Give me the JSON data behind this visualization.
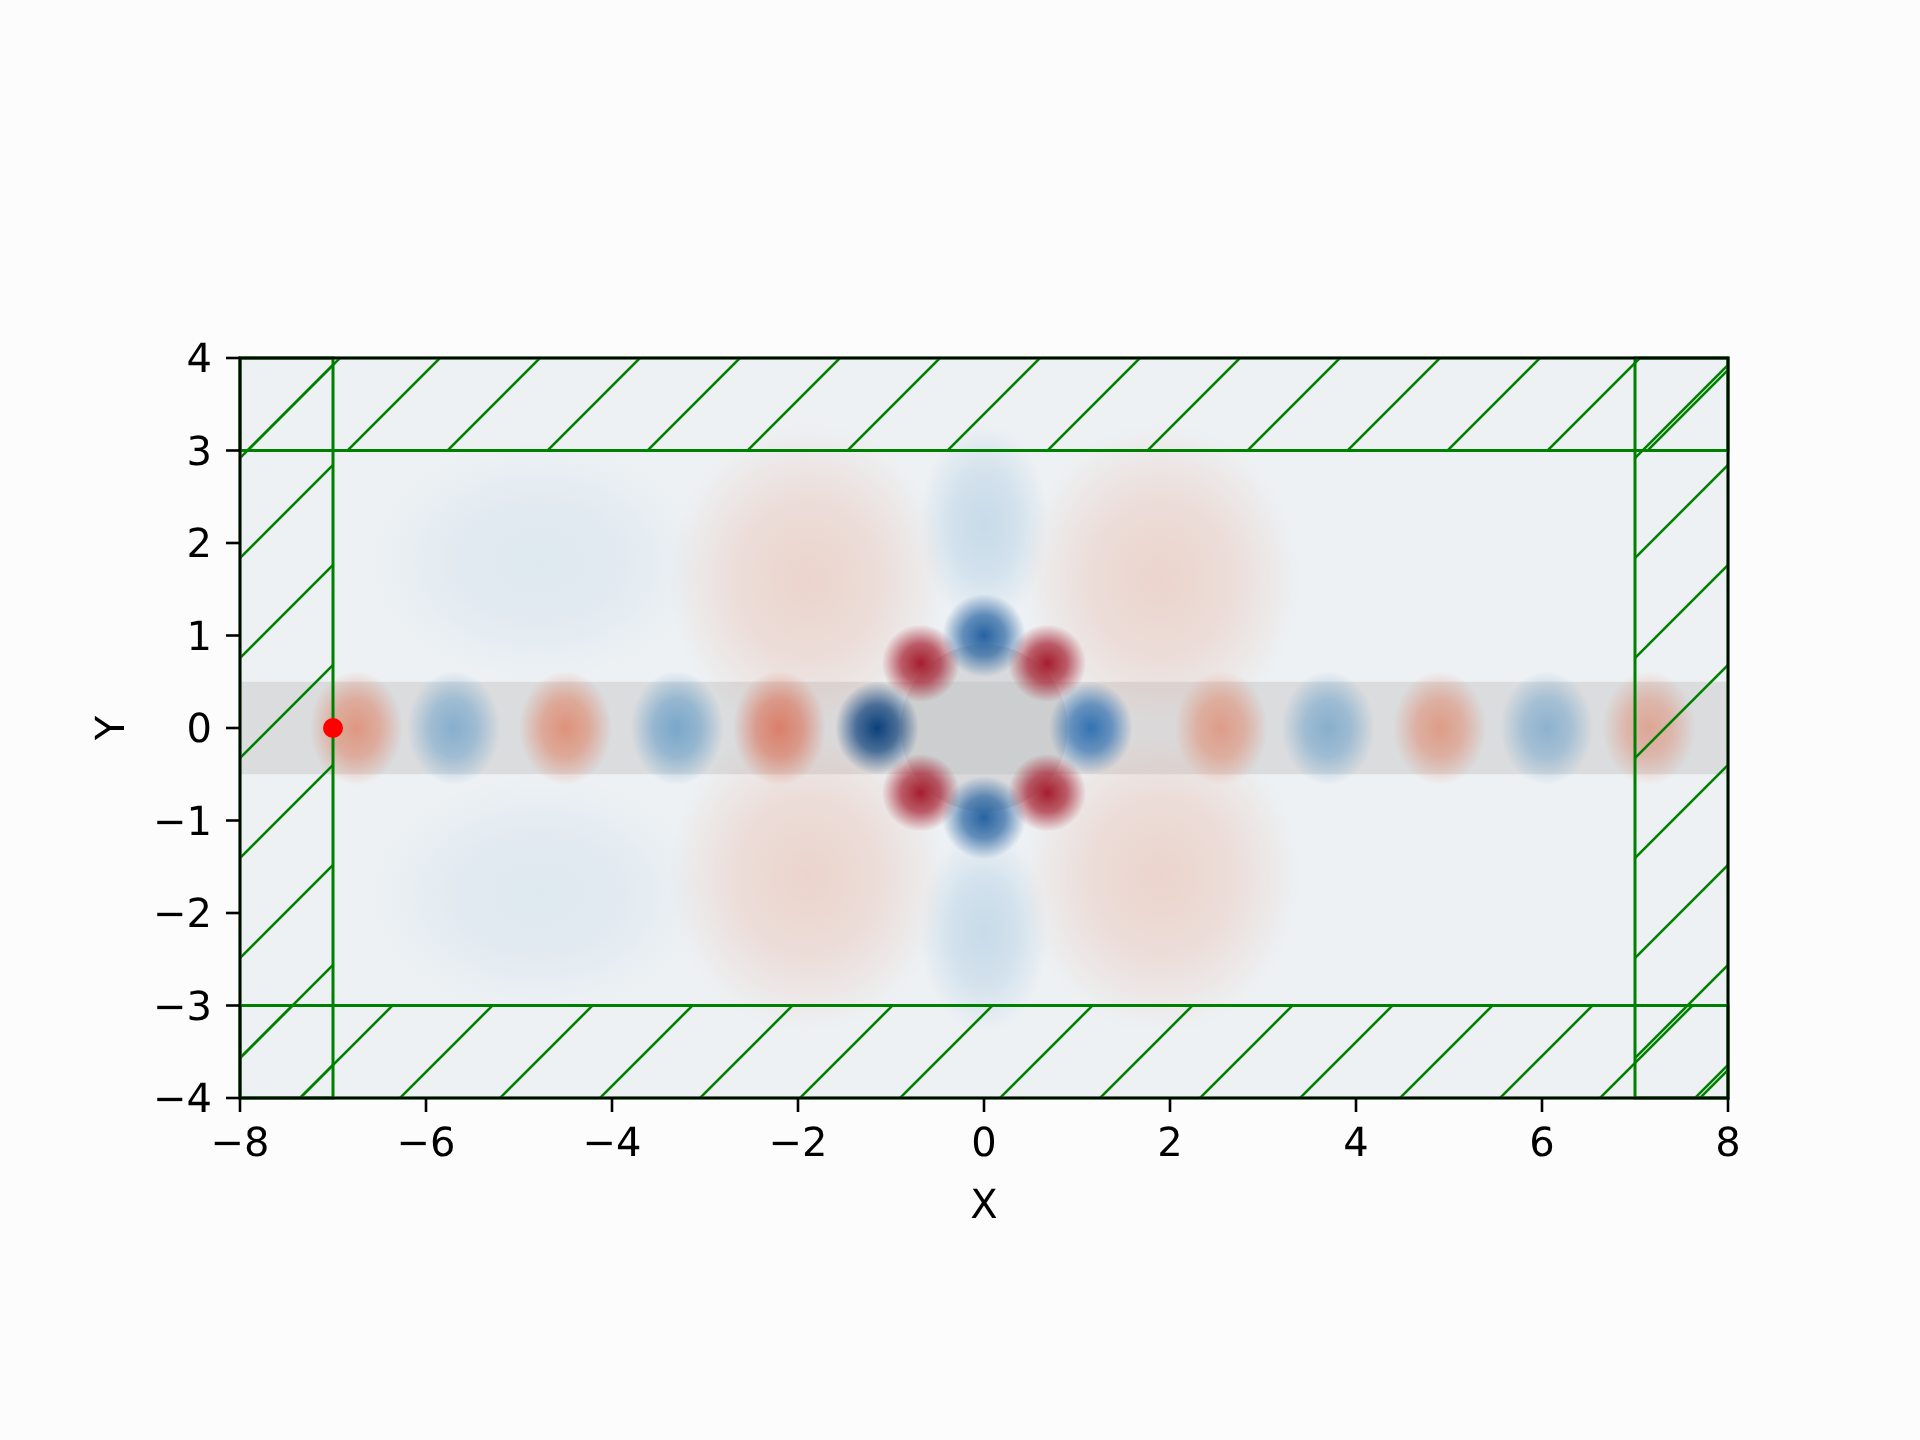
{
  "chart_data": {
    "type": "scatter",
    "xlabel": "X",
    "ylabel": "Y",
    "x": [
      -7
    ],
    "series": [
      {
        "color": "#ff0000",
        "values": [
          0
        ]
      }
    ],
    "marker": "circle",
    "xlim": [
      -8,
      8
    ],
    "ylim": [
      -4,
      4
    ],
    "xticks": [
      -8,
      -6,
      -4,
      -2,
      0,
      2,
      4,
      6,
      8
    ],
    "yticks": [
      -4,
      -3,
      -2,
      -1,
      0,
      1,
      2,
      3,
      4
    ],
    "bands": [
      {
        "axis": "x",
        "from": -8,
        "to": -7,
        "color": "#008000"
      },
      {
        "axis": "x",
        "from": 7,
        "to": 8,
        "color": "#008000"
      },
      {
        "axis": "y",
        "from": 3,
        "to": 4,
        "color": "#008000"
      },
      {
        "axis": "y",
        "from": -4,
        "to": -3,
        "color": "#008000"
      },
      {
        "axis": "y",
        "from": -0.5,
        "to": 0.5,
        "color": "#bdbdbd"
      }
    ]
  }
}
